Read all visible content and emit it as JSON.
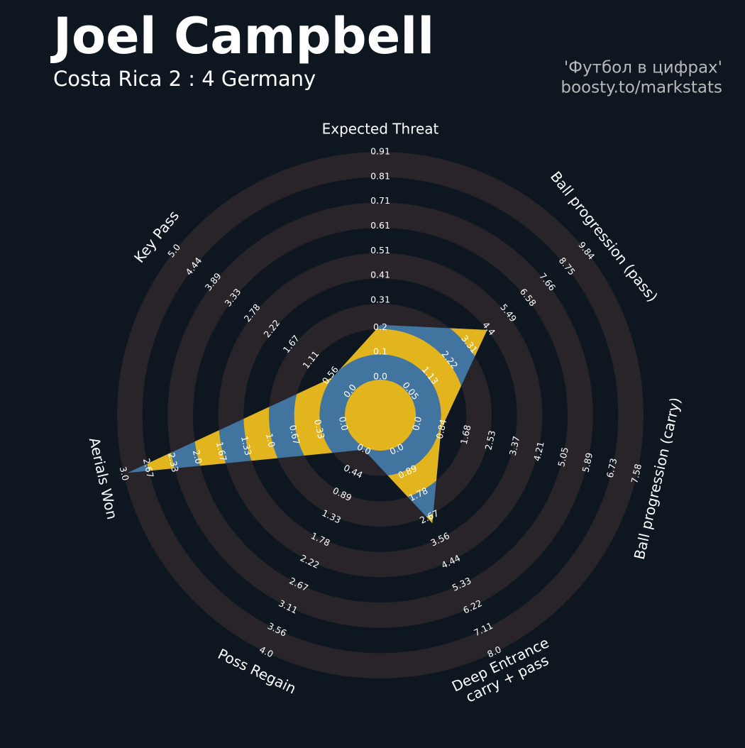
{
  "chart_data": {
    "type": "radar",
    "title": "Joel Campbell",
    "subtitle": "Costa Rica 2 : 4 Germany",
    "credits": [
      "'Футбол в цифрах'",
      "boosty.to/markstats"
    ],
    "categories": [
      "Expected Threat",
      "Ball progression (pass)",
      "Ball progression (carry)",
      "Deep Entrance\ncarry + pass",
      "Poss Regain",
      "Aerials Won",
      "Key Pass"
    ],
    "values": [
      0.21,
      4.33,
      0.81,
      2.9,
      0,
      2.95,
      0.5
    ],
    "color": "#4274a0",
    "ring_color": "#e2b51f",
    "band_color": "#28242a",
    "axes": [
      {
        "lim": [
          0,
          0.91
        ],
        "ticks": [
          {
            "value": 0,
            "label": "0.0"
          },
          0.1,
          0.2,
          0.31,
          0.41,
          0.51,
          0.61,
          0.71,
          0.81,
          0.91
        ]
      },
      {
        "lim": [
          0.05,
          9.84
        ],
        "ticks": [
          0.05,
          1.13,
          2.22,
          3.31,
          4.4,
          5.49,
          6.58,
          7.66,
          8.75,
          9.84
        ]
      },
      {
        "lim": [
          0,
          7.58
        ],
        "ticks": [
          {
            "value": 0,
            "label": "0.0"
          },
          0.84,
          1.68,
          2.53,
          3.37,
          4.21,
          5.05,
          5.89,
          6.73,
          7.58
        ]
      },
      {
        "lim": [
          0,
          8
        ],
        "ticks": [
          {
            "value": 0,
            "label": "0.0"
          },
          0.89,
          1.78,
          2.67,
          3.56,
          4.44,
          5.33,
          6.22,
          7.11,
          {
            "value": 8,
            "label": "8.0"
          }
        ]
      },
      {
        "lim": [
          0,
          4
        ],
        "ticks": [
          {
            "value": 0,
            "label": "0.0"
          },
          0.44,
          0.89,
          1.33,
          1.78,
          2.22,
          2.67,
          3.11,
          3.56,
          {
            "value": 4,
            "label": "4.0"
          }
        ]
      },
      {
        "lim": [
          0,
          3
        ],
        "ticks": [
          {
            "value": 0,
            "label": "0.0"
          },
          0.33,
          0.67,
          {
            "value": 1,
            "label": "1.0"
          },
          1.33,
          1.67,
          {
            "value": 2,
            "label": "2.0"
          },
          2.33,
          2.67,
          {
            "value": 3,
            "label": "3.0"
          }
        ]
      },
      {
        "lim": [
          0,
          5
        ],
        "ticks": [
          {
            "value": 0,
            "label": "0.0"
          },
          0.56,
          1.11,
          1.67,
          2.22,
          2.78,
          3.33,
          3.89,
          4.44,
          {
            "value": 5,
            "label": "5.0"
          }
        ]
      }
    ]
  }
}
